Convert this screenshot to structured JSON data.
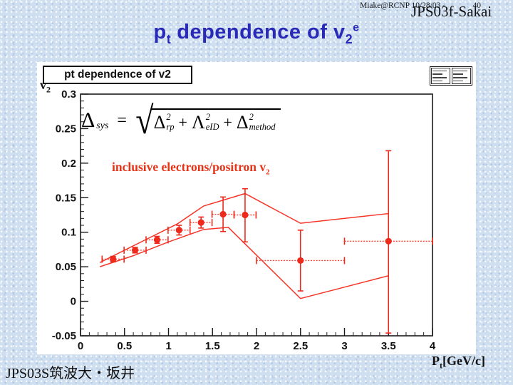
{
  "header": {
    "credit": "Miake@RCNP 10/28/03 -",
    "page_number": "40",
    "id": "JPS03f-Sakai"
  },
  "title": {
    "p": "p",
    "p_sub": "t",
    "rest": "dependence of v",
    "v_sub": "2",
    "e_sup": "e"
  },
  "panel": {
    "chart_box_title": "pt dependence of v2",
    "y_axis_label_base": "v",
    "y_axis_label_sub": "2",
    "x_axis_label_base": "P",
    "x_axis_label_sub": "t",
    "x_axis_label_rest": "[GeV/c]"
  },
  "formula": {
    "lhs": "Δ",
    "lhs_sub": "sys",
    "equals": "=",
    "sqrt": "√",
    "plus": "+",
    "terms": [
      {
        "base": "Δ",
        "sup": "2",
        "sub": "rp"
      },
      {
        "base": "Λ",
        "sup": "2",
        "sub": "eID"
      },
      {
        "base": "Δ",
        "sup": "2",
        "sub": "method"
      }
    ]
  },
  "annotation": {
    "text": "inclusive electrons/positron v",
    "sub": "2"
  },
  "footer": {
    "text": "JPS03S筑波大・坂井"
  },
  "colors": {
    "title_blue": "#2a2ab8",
    "data_red": "#ee2a1c",
    "band_red": "#f53528",
    "annotation_red": "#e73318",
    "background_blue": "#cfdff0",
    "frame_black": "#1a1a1a"
  },
  "chart_data": {
    "type": "scatter",
    "title": "pt dependence of v2",
    "xlabel": "Pt[GeV/c]",
    "ylabel": "v2",
    "series_label": "inclusive electrons/positron v2",
    "xlim": [
      0,
      4
    ],
    "ylim": [
      -0.05,
      0.3
    ],
    "x_major_ticks": [
      {
        "v": 0,
        "label": "0"
      },
      {
        "v": 0.5,
        "label": "0.5"
      },
      {
        "v": 1,
        "label": "1"
      },
      {
        "v": 1.5,
        "label": "1.5"
      },
      {
        "v": 2,
        "label": "2"
      },
      {
        "v": 2.5,
        "label": "2.5"
      },
      {
        "v": 3,
        "label": "3"
      },
      {
        "v": 3.5,
        "label": "3.5"
      },
      {
        "v": 4,
        "label": "4"
      }
    ],
    "y_major_ticks": [
      {
        "v": 0.3,
        "label": "0.3"
      },
      {
        "v": 0.25,
        "label": "0.25"
      },
      {
        "v": 0.2,
        "label": "0.2"
      },
      {
        "v": 0.15,
        "label": "0.15"
      },
      {
        "v": 0.1,
        "label": "0.1"
      },
      {
        "v": 0.05,
        "label": "0.05"
      },
      {
        "v": 0,
        "label": "0"
      },
      {
        "v": -0.05,
        "label": "-0.05"
      }
    ],
    "x_minor_step": 0.1,
    "y_minor_step": 0.01,
    "grid": false,
    "points": [
      {
        "x": 0.37,
        "y": 0.061,
        "xerr": 0.125,
        "yerr_up": 0.004,
        "yerr_dn": 0.004
      },
      {
        "x": 0.62,
        "y": 0.074,
        "xerr": 0.125,
        "yerr_up": 0.004,
        "yerr_dn": 0.004
      },
      {
        "x": 0.87,
        "y": 0.089,
        "xerr": 0.125,
        "yerr_up": 0.005,
        "yerr_dn": 0.005
      },
      {
        "x": 1.12,
        "y": 0.103,
        "xerr": 0.125,
        "yerr_up": 0.007,
        "yerr_dn": 0.007
      },
      {
        "x": 1.37,
        "y": 0.114,
        "xerr": 0.125,
        "yerr_up": 0.008,
        "yerr_dn": 0.008
      },
      {
        "x": 1.62,
        "y": 0.126,
        "xerr": 0.125,
        "yerr_up": 0.025,
        "yerr_dn": 0.025
      },
      {
        "x": 1.87,
        "y": 0.125,
        "xerr": 0.125,
        "yerr_up": 0.038,
        "yerr_dn": 0.039
      },
      {
        "x": 2.5,
        "y": 0.059,
        "xerr": 0.5,
        "yerr_up": 0.044,
        "yerr_dn": 0.044
      },
      {
        "x": 3.5,
        "y": 0.087,
        "xerr": 0.5,
        "yerr_up": 0.131,
        "yerr_dn": 0.133
      }
    ],
    "sys_band_upper": [
      [
        0.22,
        0.056
      ],
      [
        0.5,
        0.074
      ],
      [
        0.8,
        0.093
      ],
      [
        1.1,
        0.112
      ],
      [
        1.4,
        0.138
      ],
      [
        1.87,
        0.156
      ],
      [
        2.5,
        0.113
      ],
      [
        3.5,
        0.127
      ]
    ],
    "sys_band_lower": [
      [
        0.22,
        0.05
      ],
      [
        0.6,
        0.066
      ],
      [
        1.0,
        0.086
      ],
      [
        1.4,
        0.104
      ],
      [
        1.68,
        0.107
      ],
      [
        2.5,
        0.004
      ],
      [
        3.5,
        0.037
      ]
    ]
  }
}
